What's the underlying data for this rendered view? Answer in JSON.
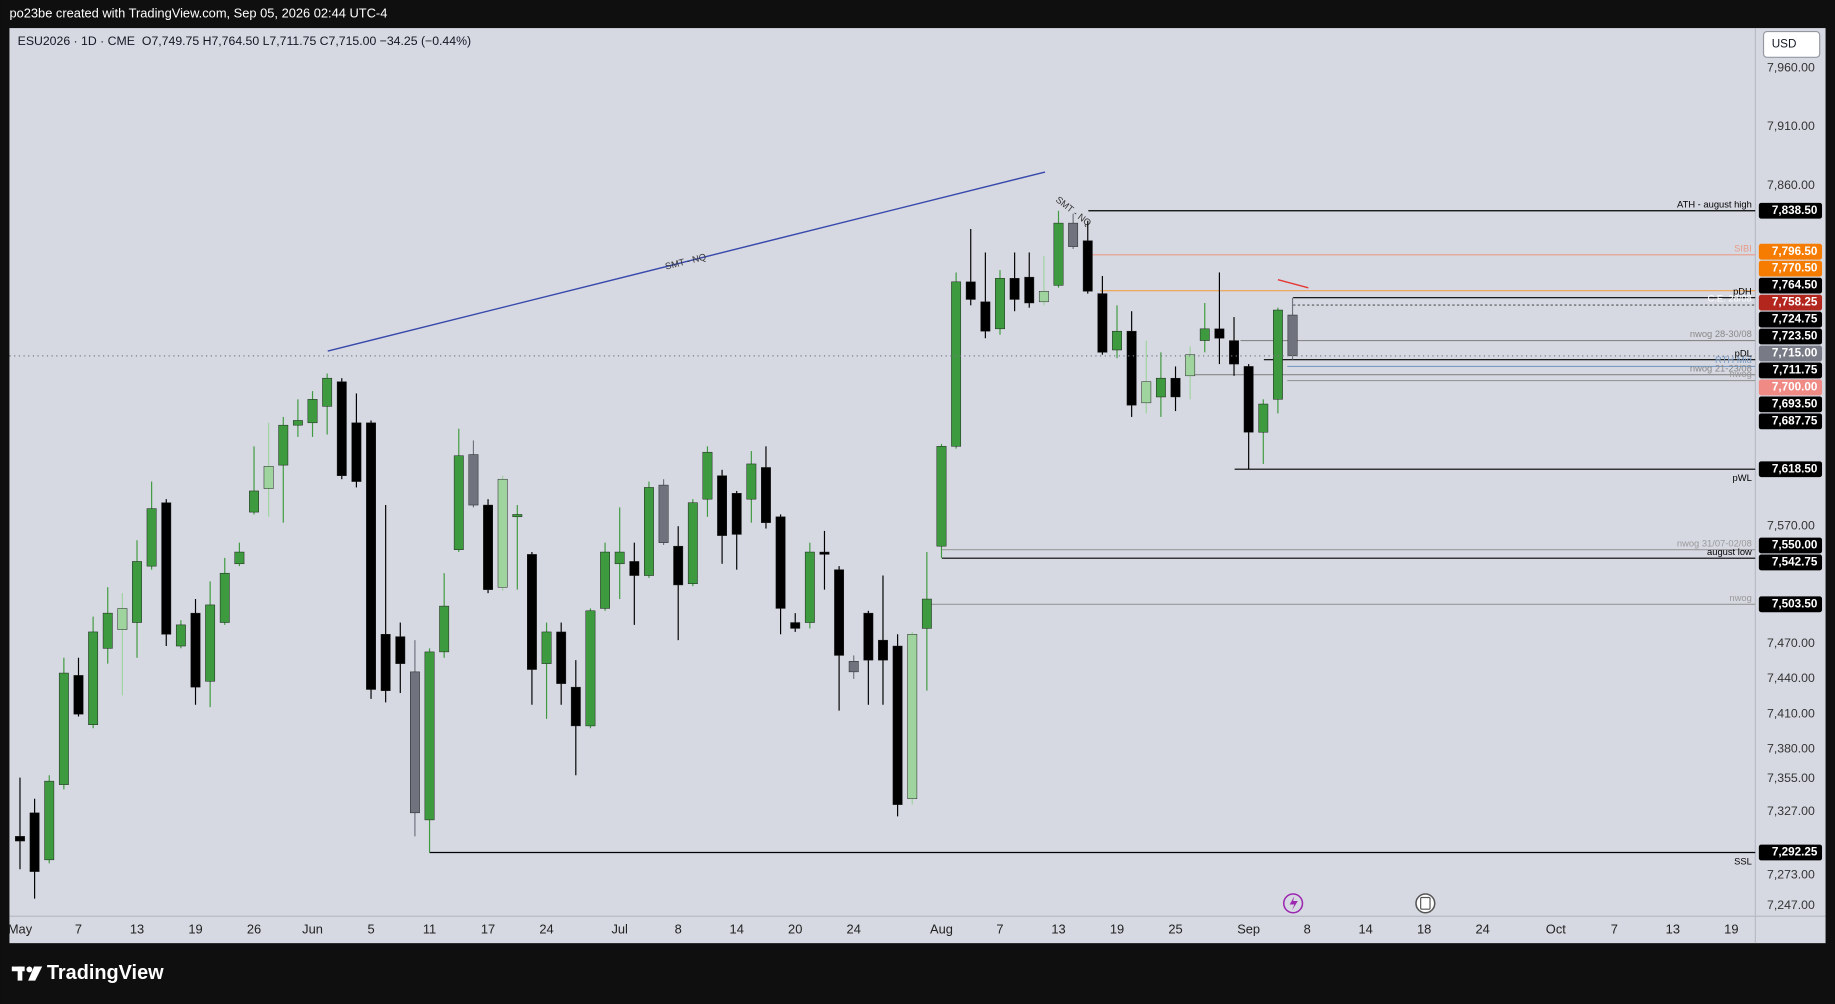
{
  "header": {
    "text": "po23be created with TradingView.com, Sep 05, 2026 02:44 UTC-4"
  },
  "chart_data": {
    "type": "candlestick",
    "title": "ESU2026 · 1D · CME",
    "ohlc_legend": "O7,749.75 H7,764.50 L7,711.75 C7,715.00 −34.25 (−0.44%)",
    "currency": "USD",
    "categories": [
      "May",
      null,
      null,
      null,
      "7",
      null,
      null,
      null,
      "13",
      null,
      null,
      null,
      "19",
      null,
      null,
      null,
      "26",
      null,
      null,
      null,
      "Jun",
      null,
      null,
      null,
      "5",
      null,
      null,
      null,
      "11",
      null,
      null,
      null,
      "17",
      null,
      null,
      null,
      "24",
      null,
      null,
      null,
      null,
      "Jul",
      null,
      null,
      null,
      "8",
      null,
      null,
      null,
      "14",
      null,
      null,
      null,
      "20",
      null,
      null,
      null,
      "24",
      null,
      null,
      null,
      null,
      null,
      "Aug",
      null,
      null,
      null,
      "7",
      null,
      null,
      null,
      "13",
      null,
      null,
      null,
      "19",
      null,
      null,
      null,
      "25",
      null,
      null,
      null,
      null,
      "Sep",
      null,
      null,
      null,
      "8",
      null,
      null,
      null,
      "14",
      null,
      null,
      null,
      "18",
      null,
      null,
      null,
      "24",
      null,
      null,
      null,
      null,
      "Oct",
      null,
      null,
      null,
      "7",
      null,
      null,
      null,
      "13",
      null,
      null,
      null,
      "19",
      null
    ],
    "open": [
      7306,
      7326,
      7286,
      7350,
      7443,
      7401,
      7466,
      7482,
      7488,
      7536,
      7590,
      7468,
      7496,
      7438,
      7488,
      7538,
      7582,
      7602,
      7622,
      7656,
      7658,
      7672,
      7693,
      7658,
      7658,
      7478,
      7476,
      7446,
      7320,
      7463,
      7550,
      7631,
      7588,
      7518,
      7578,
      7546,
      7453,
      7480,
      7433,
      7400,
      7500,
      7538,
      7540,
      7528,
      7605,
      7553,
      7521,
      7593,
      7613,
      7598,
      7593,
      7620,
      7578,
      7488,
      7488,
      7548,
      7533,
      7455,
      7496,
      7473,
      7468,
      7338,
      7483,
      7553,
      7638,
      7778,
      7761,
      7738,
      7781,
      7782,
      7761,
      7775,
      7828,
      7813,
      7768,
      7720,
      7736,
      7675,
      7680,
      7696,
      7698,
      7728,
      7738,
      7728,
      7706,
      7650,
      7678,
      7749.75,
      null,
      null,
      null,
      null,
      null,
      null,
      null,
      null,
      null,
      null,
      null,
      null,
      null,
      null,
      null,
      null,
      null,
      null,
      null,
      null,
      null,
      null,
      null,
      null,
      null,
      null,
      null,
      null,
      null,
      null,
      null
    ],
    "high": [
      7356,
      7338,
      7358,
      7458,
      7458,
      7493,
      7518,
      7513,
      7558,
      7608,
      7593,
      7490,
      7508,
      7523,
      7543,
      7556,
      7638,
      7658,
      7663,
      7678,
      7685,
      7700,
      7696,
      7683,
      7660,
      7588,
      7488,
      7473,
      7466,
      7530,
      7653,
      7643,
      7593,
      7613,
      7588,
      7548,
      7488,
      7488,
      7456,
      7500,
      7556,
      7586,
      7556,
      7608,
      7610,
      7570,
      7593,
      7638,
      7618,
      7600,
      7634,
      7638,
      7580,
      7496,
      7556,
      7566,
      7536,
      7460,
      7498,
      7528,
      7478,
      7480,
      7548,
      7640,
      7786,
      7823,
      7803,
      7788,
      7803,
      7803,
      7800,
      7838.5,
      7836,
      7830,
      7783,
      7758,
      7753,
      7728,
      7718,
      7706,
      7723,
      7760,
      7786,
      7748,
      7708,
      7678,
      7756,
      7764.5,
      null,
      null,
      null,
      null,
      null,
      null,
      null,
      null,
      null,
      null,
      null,
      null,
      null,
      null,
      null,
      null,
      null,
      null,
      null,
      null,
      null,
      null,
      null,
      null,
      null,
      null,
      null,
      null,
      null,
      null,
      null
    ],
    "low": [
      7278,
      7253,
      7283,
      7346,
      7408,
      7398,
      7453,
      7426,
      7458,
      7533,
      7468,
      7466,
      7418,
      7416,
      7486,
      7536,
      7580,
      7578,
      7573,
      7646,
      7646,
      7648,
      7610,
      7603,
      7423,
      7420,
      7428,
      7306,
      7292.25,
      7458,
      7548,
      7586,
      7513,
      7515,
      7516,
      7418,
      7406,
      7418,
      7358,
      7398,
      7498,
      7508,
      7486,
      7526,
      7554,
      7473,
      7519,
      7578,
      7538,
      7533,
      7573,
      7568,
      7478,
      7480,
      7483,
      7516,
      7413,
      7440,
      7418,
      7418,
      7323,
      7333,
      7430,
      7542.75,
      7636,
      7758,
      7730,
      7733,
      7753,
      7756,
      7758,
      7773,
      7806,
      7768,
      7716,
      7713,
      7663,
      7666,
      7663,
      7668,
      7678,
      7718,
      7708,
      7698,
      7618.5,
      7623,
      7666,
      7711.75,
      null,
      null,
      null,
      null,
      null,
      null,
      null,
      null,
      null,
      null,
      null,
      null,
      null,
      null,
      null,
      null,
      null,
      null,
      null,
      null,
      null,
      null,
      null,
      null,
      null,
      null,
      null,
      null,
      null,
      null,
      null
    ],
    "close": [
      7302,
      7276,
      7353,
      7445,
      7410,
      7480,
      7496,
      7500,
      7540,
      7585,
      7478,
      7486,
      7433,
      7503,
      7530,
      7548,
      7600,
      7621,
      7656,
      7660,
      7678,
      7696,
      7613,
      7608,
      7431,
      7430,
      7453,
      7326,
      7463,
      7502,
      7630,
      7588,
      7516,
      7610,
      7580,
      7448,
      7480,
      7436,
      7400,
      7498,
      7548,
      7548,
      7528,
      7603,
      7556,
      7520,
      7590,
      7633,
      7562,
      7563,
      7623,
      7573,
      7500,
      7483,
      7548,
      7546,
      7460,
      7446,
      7456,
      7456,
      7333,
      7478,
      7508,
      7638,
      7778,
      7763,
      7736,
      7781,
      7763,
      7760,
      7770,
      7828,
      7808,
      7770,
      7718,
      7736,
      7673,
      7693,
      7696,
      7680,
      7716,
      7738,
      7730,
      7708,
      7650,
      7674,
      7754,
      7715,
      null,
      null,
      null,
      null,
      null,
      null,
      null,
      null,
      null,
      null,
      null,
      null,
      null,
      null,
      null,
      null,
      null,
      null,
      null,
      null,
      null,
      null,
      null,
      null,
      null,
      null,
      null,
      null,
      null,
      null,
      null
    ],
    "colors": [
      "#000000",
      "#000000",
      "#3e9a3e",
      "#3e9a3e",
      "#000000",
      "#3e9a3e",
      "#3e9a3e",
      "#9fd49f",
      "#3e9a3e",
      "#3e9a3e",
      "#000000",
      "#3e9a3e",
      "#000000",
      "#3e9a3e",
      "#3e9a3e",
      "#3e9a3e",
      "#3e9a3e",
      "#9fd49f",
      "#3e9a3e",
      "#3e9a3e",
      "#3e9a3e",
      "#3e9a3e",
      "#000000",
      "#000000",
      "#000000",
      "#000000",
      "#000000",
      "#70737d",
      "#3e9a3e",
      "#3e9a3e",
      "#3e9a3e",
      "#70737d",
      "#000000",
      "#9fd49f",
      "#3e9a3e",
      "#000000",
      "#3e9a3e",
      "#000000",
      "#000000",
      "#3e9a3e",
      "#3e9a3e",
      "#3e9a3e",
      "#000000",
      "#3e9a3e",
      "#70737d",
      "#000000",
      "#3e9a3e",
      "#3e9a3e",
      "#000000",
      "#000000",
      "#3e9a3e",
      "#000000",
      "#000000",
      "#000000",
      "#3e9a3e",
      "#000000",
      "#000000",
      "#70737d",
      "#000000",
      "#000000",
      "#000000",
      "#9fd49f",
      "#3e9a3e",
      "#3e9a3e",
      "#3e9a3e",
      "#000000",
      "#000000",
      "#3e9a3e",
      "#000000",
      "#000000",
      "#9fd49f",
      "#3e9a3e",
      "#70737d",
      "#000000",
      "#000000",
      "#3e9a3e",
      "#000000",
      "#9fd49f",
      "#3e9a3e",
      "#000000",
      "#9fd49f",
      "#3e9a3e",
      "#000000",
      "#000000",
      "#000000",
      "#3e9a3e",
      "#3e9a3e",
      "#70737d",
      null,
      null,
      null,
      null,
      null,
      null,
      null,
      null,
      null,
      null,
      null,
      null,
      null,
      null,
      null,
      null,
      null,
      null,
      null,
      null,
      null,
      null,
      null,
      null,
      null,
      null,
      null,
      null,
      null,
      null,
      null
    ],
    "ylim": [
      7238,
      7994
    ],
    "yticks": [
      {
        "value": 7960,
        "label": "7,960.00"
      },
      {
        "value": 7910,
        "label": "7,910.00"
      },
      {
        "value": 7860,
        "label": "7,860.00"
      },
      {
        "value": 7570,
        "label": "7,570.00"
      },
      {
        "value": 7470,
        "label": "7,470.00"
      },
      {
        "value": 7440,
        "label": "7,440.00"
      },
      {
        "value": 7410,
        "label": "7,410.00"
      },
      {
        "value": 7380,
        "label": "7,380.00"
      },
      {
        "value": 7355,
        "label": "7,355.00"
      },
      {
        "value": 7327,
        "label": "7,327.00"
      },
      {
        "value": 7273,
        "label": "7,273.00"
      },
      {
        "value": 7247,
        "label": "7,247.00"
      }
    ],
    "grid": false,
    "levels": [
      {
        "name": "ATH - august high",
        "value": 7838.5,
        "color": "#000000"
      },
      {
        "name": "SIBI",
        "value": 7801,
        "color": "#e89a86"
      },
      {
        "value": 7770.5,
        "color": "#f0a050"
      },
      {
        "name": "pDH",
        "value": 7764.5,
        "color": "#000000"
      },
      {
        "name": "C.E. 28/08",
        "value": 7758.25,
        "color": "#555555",
        "style": "dotted",
        "label_color": "#ffffff"
      },
      {
        "name": "nwog 28-30/08",
        "value": 7728,
        "color": "#888888"
      },
      {
        "name": "pDL",
        "value": 7711.75,
        "color": "#000000"
      },
      {
        "name": "RTH Mid",
        "value": 7706,
        "color": "#7b9cc4"
      },
      {
        "name": "nwog 21-23/08",
        "value": 7699,
        "color": "#888888"
      },
      {
        "name": "nwog",
        "value": 7694,
        "color": "#999999"
      },
      {
        "name": "pWL",
        "value": 7618.5,
        "color": "#000000"
      },
      {
        "name": "nwog 31/07-02/08",
        "value": 7550,
        "color": "#999999"
      },
      {
        "name": "august low",
        "value": 7542.75,
        "color": "#000000"
      },
      {
        "name": "nwog",
        "value": 7503.5,
        "color": "#999999"
      },
      {
        "name": "SSL",
        "value": 7292.25,
        "color": "#000000"
      }
    ],
    "price_tags": [
      {
        "value": 7838.5,
        "label": "7,838.50",
        "color": "#000000"
      },
      {
        "value": 7796.5,
        "label": "7,796.50",
        "color": "#f57c00"
      },
      {
        "value": 7770.5,
        "label": "7,770.50",
        "color": "#f57c00"
      },
      {
        "value": 7764.5,
        "label": "7,764.50",
        "color": "#000000"
      },
      {
        "value": 7758.25,
        "label": "7,758.25",
        "color": "#b3261e"
      },
      {
        "value": 7724.75,
        "label": "7,724.75",
        "color": "#000000"
      },
      {
        "value": 7723.5,
        "label": "7,723.50",
        "color": "#000000"
      },
      {
        "value": 7715,
        "label": "7,715.00",
        "color": "#787b86",
        "line": "dotted"
      },
      {
        "value": 7711.75,
        "label": "7,711.75",
        "color": "#000000"
      },
      {
        "value": 7700,
        "label": "7,700.00",
        "color": "#f08a84"
      },
      {
        "value": 7693.5,
        "label": "7,693.50",
        "color": "#000000"
      },
      {
        "value": 7687.75,
        "label": "7,687.75",
        "color": "#000000"
      },
      {
        "value": 7618.5,
        "label": "7,618.50",
        "color": "#000000"
      },
      {
        "value": 7550,
        "label": "7,550.00",
        "color": "#000000"
      },
      {
        "value": 7542.75,
        "label": "7,542.75",
        "color": "#000000"
      },
      {
        "value": 7503.5,
        "label": "7,503.50",
        "color": "#000000"
      },
      {
        "value": 7292.25,
        "label": "7,292.25",
        "color": "#000000"
      }
    ],
    "annotations": [
      "SMT - NQ",
      "SMT - NQ"
    ]
  },
  "footer": {
    "logo": "TradingView"
  }
}
